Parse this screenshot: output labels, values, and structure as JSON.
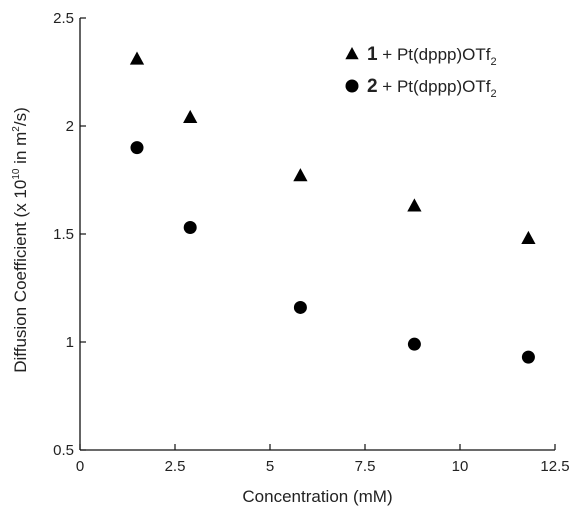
{
  "chart_data": {
    "type": "scatter",
    "xlabel": "Concentration (mM)",
    "ylabel": {
      "before_sup": "Diffusion Coefficient (x 10",
      "sup": "10",
      "between": " in m",
      "sup2": "2",
      "after": "/s)"
    },
    "xlim": [
      0,
      12.5
    ],
    "ylim": [
      0.5,
      2.5
    ],
    "xticks": [
      "0",
      "2.5",
      "5",
      "7.5",
      "10",
      "12.5"
    ],
    "xtick_values": [
      0,
      2.5,
      5,
      7.5,
      10,
      12.5
    ],
    "yticks": [
      "0.5",
      "1",
      "1.5",
      "2",
      "2.5"
    ],
    "ytick_values": [
      0.5,
      1,
      1.5,
      2,
      2.5
    ],
    "grid": false,
    "legend_position": "top-right",
    "series": [
      {
        "label_num": "1",
        "label_text": " + Pt(dppp)OTf",
        "label_sub": "2",
        "marker": "triangle",
        "color": "#000000",
        "x": [
          1.5,
          2.9,
          5.8,
          8.8,
          11.8
        ],
        "y": [
          2.31,
          2.04,
          1.77,
          1.63,
          1.48
        ]
      },
      {
        "label_num": "2",
        "label_text": " + Pt(dppp)OTf",
        "label_sub": "2",
        "marker": "circle",
        "color": "#000000",
        "x": [
          1.5,
          2.9,
          5.8,
          8.8,
          11.8
        ],
        "y": [
          1.9,
          1.53,
          1.16,
          0.99,
          0.93
        ]
      }
    ]
  }
}
